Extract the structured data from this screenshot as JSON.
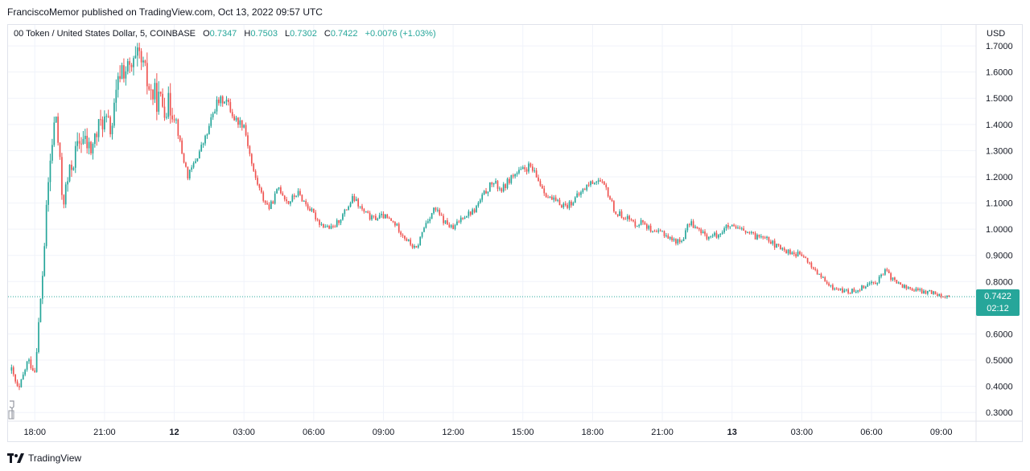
{
  "header": {
    "publisher": "FranciscoMemor published on TradingView.com, Oct 13, 2022 09:57 UTC"
  },
  "legend": {
    "symbol": "00 Token / United States Dollar, 5, COINBASE",
    "o_label": "O",
    "o": "0.7347",
    "h_label": "H",
    "h": "0.7503",
    "l_label": "L",
    "l": "0.7302",
    "c_label": "C",
    "c": "0.7422",
    "change": "+0.0076 (+1.03%)"
  },
  "axis": {
    "currency": "USD"
  },
  "last_price": {
    "value": "0.7422",
    "countdown": "02:12"
  },
  "footer": {
    "brand": "TradingView"
  },
  "colors": {
    "up": "#26a69a",
    "down": "#ef5350",
    "grid": "#f0f3fa",
    "last_line": "#26a69a"
  },
  "chart_data": {
    "type": "candlestick",
    "y_ticks": [
      "0.3000",
      "0.4000",
      "0.5000",
      "0.6000",
      "0.7000",
      "0.8000",
      "0.9000",
      "1.0000",
      "1.1000",
      "1.2000",
      "1.3000",
      "1.4000",
      "1.5000",
      "1.6000",
      "1.7000"
    ],
    "ylim": [
      0.27,
      1.78
    ],
    "x_ticks": [
      {
        "label": "18:00",
        "hour": 18
      },
      {
        "label": "21:00",
        "hour": 21
      },
      {
        "label": "12",
        "hour": 24
      },
      {
        "label": "03:00",
        "hour": 27
      },
      {
        "label": "06:00",
        "hour": 30
      },
      {
        "label": "09:00",
        "hour": 33
      },
      {
        "label": "12:00",
        "hour": 36
      },
      {
        "label": "15:00",
        "hour": 39
      },
      {
        "label": "18:00",
        "hour": 42
      },
      {
        "label": "21:00",
        "hour": 45
      },
      {
        "label": "13",
        "hour": 48
      },
      {
        "label": "03:00",
        "hour": 51
      },
      {
        "label": "06:00",
        "hour": 54
      },
      {
        "label": "09:00",
        "hour": 57
      }
    ],
    "xlim_hours": [
      16.85,
      58.5
    ],
    "price_path": [
      [
        17.0,
        0.46
      ],
      [
        17.3,
        0.38
      ],
      [
        17.7,
        0.5
      ],
      [
        18.0,
        0.46
      ],
      [
        18.3,
        0.78
      ],
      [
        18.6,
        1.2
      ],
      [
        18.9,
        1.45
      ],
      [
        19.2,
        1.1
      ],
      [
        19.6,
        1.25
      ],
      [
        20.0,
        1.35
      ],
      [
        20.4,
        1.3
      ],
      [
        20.9,
        1.42
      ],
      [
        21.3,
        1.38
      ],
      [
        21.7,
        1.62
      ],
      [
        22.1,
        1.6
      ],
      [
        22.5,
        1.65
      ],
      [
        23.0,
        1.52
      ],
      [
        23.5,
        1.48
      ],
      [
        24.0,
        1.46
      ],
      [
        24.3,
        1.3
      ],
      [
        24.6,
        1.2
      ],
      [
        25.0,
        1.28
      ],
      [
        25.4,
        1.36
      ],
      [
        25.8,
        1.48
      ],
      [
        26.2,
        1.5
      ],
      [
        26.6,
        1.42
      ],
      [
        27.0,
        1.4
      ],
      [
        27.4,
        1.22
      ],
      [
        27.8,
        1.12
      ],
      [
        28.1,
        1.08
      ],
      [
        28.5,
        1.16
      ],
      [
        28.9,
        1.1
      ],
      [
        29.3,
        1.14
      ],
      [
        29.8,
        1.08
      ],
      [
        30.3,
        1.02
      ],
      [
        30.8,
        1.0
      ],
      [
        31.3,
        1.06
      ],
      [
        31.7,
        1.12
      ],
      [
        32.1,
        1.07
      ],
      [
        32.5,
        1.04
      ],
      [
        33.0,
        1.05
      ],
      [
        33.5,
        1.02
      ],
      [
        34.0,
        0.96
      ],
      [
        34.4,
        0.92
      ],
      [
        34.8,
        1.02
      ],
      [
        35.2,
        1.08
      ],
      [
        35.6,
        1.03
      ],
      [
        36.0,
        1.0
      ],
      [
        36.4,
        1.05
      ],
      [
        36.9,
        1.07
      ],
      [
        37.3,
        1.13
      ],
      [
        37.7,
        1.18
      ],
      [
        38.1,
        1.15
      ],
      [
        38.5,
        1.2
      ],
      [
        38.9,
        1.22
      ],
      [
        39.3,
        1.24
      ],
      [
        39.7,
        1.18
      ],
      [
        40.1,
        1.12
      ],
      [
        40.5,
        1.1
      ],
      [
        40.9,
        1.09
      ],
      [
        41.3,
        1.12
      ],
      [
        41.8,
        1.17
      ],
      [
        42.2,
        1.19
      ],
      [
        42.6,
        1.15
      ],
      [
        43.0,
        1.06
      ],
      [
        43.4,
        1.05
      ],
      [
        43.8,
        1.02
      ],
      [
        44.2,
        1.03
      ],
      [
        44.6,
        0.98
      ],
      [
        45.0,
        0.99
      ],
      [
        45.4,
        0.96
      ],
      [
        45.8,
        0.95
      ],
      [
        46.2,
        1.03
      ],
      [
        46.6,
        0.99
      ],
      [
        47.0,
        0.97
      ],
      [
        47.4,
        0.98
      ],
      [
        47.8,
        1.01
      ],
      [
        48.2,
        1.0
      ],
      [
        48.6,
        0.99
      ],
      [
        49.0,
        0.97
      ],
      [
        49.4,
        0.98
      ],
      [
        49.8,
        0.94
      ],
      [
        50.2,
        0.92
      ],
      [
        50.6,
        0.91
      ],
      [
        51.0,
        0.9
      ],
      [
        51.4,
        0.86
      ],
      [
        51.8,
        0.82
      ],
      [
        52.2,
        0.78
      ],
      [
        52.6,
        0.77
      ],
      [
        53.0,
        0.76
      ],
      [
        53.4,
        0.77
      ],
      [
        53.8,
        0.79
      ],
      [
        54.2,
        0.8
      ],
      [
        54.6,
        0.84
      ],
      [
        55.0,
        0.8
      ],
      [
        55.4,
        0.78
      ],
      [
        55.8,
        0.77
      ],
      [
        56.2,
        0.76
      ],
      [
        56.6,
        0.76
      ],
      [
        57.0,
        0.75
      ],
      [
        57.4,
        0.74
      ]
    ],
    "last": 0.7422
  }
}
